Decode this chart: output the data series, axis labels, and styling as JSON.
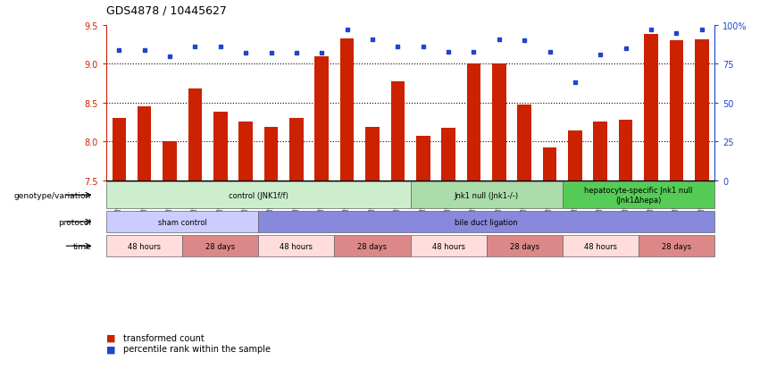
{
  "title": "GDS4878 / 10445627",
  "samples": [
    "GSM984189",
    "GSM984190",
    "GSM984191",
    "GSM984177",
    "GSM984178",
    "GSM984179",
    "GSM984180",
    "GSM984181",
    "GSM984182",
    "GSM984168",
    "GSM984169",
    "GSM984170",
    "GSM984183",
    "GSM984184",
    "GSM984185",
    "GSM984171",
    "GSM984172",
    "GSM984173",
    "GSM984186",
    "GSM984187",
    "GSM984188",
    "GSM984174",
    "GSM984175",
    "GSM984176"
  ],
  "bar_values": [
    8.3,
    8.45,
    8.0,
    8.68,
    8.38,
    8.26,
    8.19,
    8.3,
    9.1,
    9.33,
    8.19,
    8.78,
    8.07,
    8.18,
    9.01,
    9.01,
    8.48,
    7.92,
    8.14,
    8.26,
    8.28,
    9.38,
    9.3,
    9.32
  ],
  "dot_values": [
    84,
    84,
    80,
    86,
    86,
    82,
    82,
    82,
    82,
    97,
    91,
    86,
    86,
    83,
    83,
    91,
    90,
    83,
    63,
    81,
    85,
    97,
    95,
    97
  ],
  "ylim_left": [
    7.5,
    9.5
  ],
  "ylim_right": [
    0,
    100
  ],
  "yticks_left": [
    7.5,
    8.0,
    8.5,
    9.0,
    9.5
  ],
  "yticks_right": [
    0,
    25,
    50,
    75,
    100
  ],
  "grid_lines": [
    8.0,
    8.5,
    9.0
  ],
  "bar_color": "#cc2200",
  "dot_color": "#2244cc",
  "genotype_groups": [
    {
      "label": "control (JNK1f/f)",
      "start": 0,
      "end": 11,
      "color": "#cceecc"
    },
    {
      "label": "Jnk1 null (Jnk1-/-)",
      "start": 12,
      "end": 17,
      "color": "#aaddaa"
    },
    {
      "label": "hepatocyte-specific Jnk1 null\n(Jnk1Δhepa)",
      "start": 18,
      "end": 23,
      "color": "#55cc55"
    }
  ],
  "protocol_groups": [
    {
      "label": "sham control",
      "start": 0,
      "end": 5,
      "color": "#ccccff"
    },
    {
      "label": "bile duct ligation",
      "start": 6,
      "end": 23,
      "color": "#8888dd"
    }
  ],
  "time_groups": [
    {
      "label": "48 hours",
      "start": 0,
      "end": 2,
      "color": "#ffdddd"
    },
    {
      "label": "28 days",
      "start": 3,
      "end": 5,
      "color": "#dd8888"
    },
    {
      "label": "48 hours",
      "start": 6,
      "end": 8,
      "color": "#ffdddd"
    },
    {
      "label": "28 days",
      "start": 9,
      "end": 11,
      "color": "#dd8888"
    },
    {
      "label": "48 hours",
      "start": 12,
      "end": 14,
      "color": "#ffdddd"
    },
    {
      "label": "28 days",
      "start": 15,
      "end": 17,
      "color": "#dd8888"
    },
    {
      "label": "48 hours",
      "start": 18,
      "end": 20,
      "color": "#ffdddd"
    },
    {
      "label": "28 days",
      "start": 21,
      "end": 23,
      "color": "#dd8888"
    }
  ],
  "legend_bar_label": "transformed count",
  "legend_dot_label": "percentile rank within the sample"
}
